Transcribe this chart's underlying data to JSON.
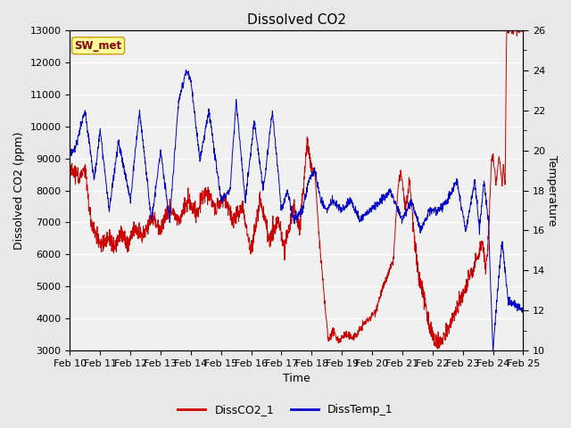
{
  "title": "Dissolved CO2",
  "xlabel": "Time",
  "ylabel_left": "Dissolved CO2 (ppm)",
  "ylabel_right": "Temperature",
  "annotation": "SW_met",
  "ylim_left": [
    3000,
    13000
  ],
  "ylim_right": [
    10,
    26
  ],
  "yticks_left": [
    3000,
    4000,
    5000,
    6000,
    7000,
    8000,
    9000,
    10000,
    11000,
    12000,
    13000
  ],
  "yticks_right_major": [
    10,
    12,
    14,
    16,
    18,
    20,
    22,
    24,
    26
  ],
  "xtick_labels": [
    "Feb 10",
    "Feb 11",
    "Feb 12",
    "Feb 13",
    "Feb 14",
    "Feb 15",
    "Feb 16",
    "Feb 17",
    "Feb 18",
    "Feb 19",
    "Feb 20",
    "Feb 21",
    "Feb 22",
    "Feb 23",
    "Feb 24",
    "Feb 25"
  ],
  "color_co2": "#cc0000",
  "color_temp": "#0000cc",
  "bg_color": "#e8e8e8",
  "plot_bg": "#e8e8e8",
  "inner_bg": "#f0f0f0",
  "legend_labels": [
    "DissCO2_1",
    "DissTemp_1"
  ],
  "annotation_bg": "#ffff99",
  "annotation_border": "#cc9900",
  "annotation_text_color": "#880000",
  "title_fontsize": 11,
  "axis_label_fontsize": 9,
  "tick_fontsize": 8
}
